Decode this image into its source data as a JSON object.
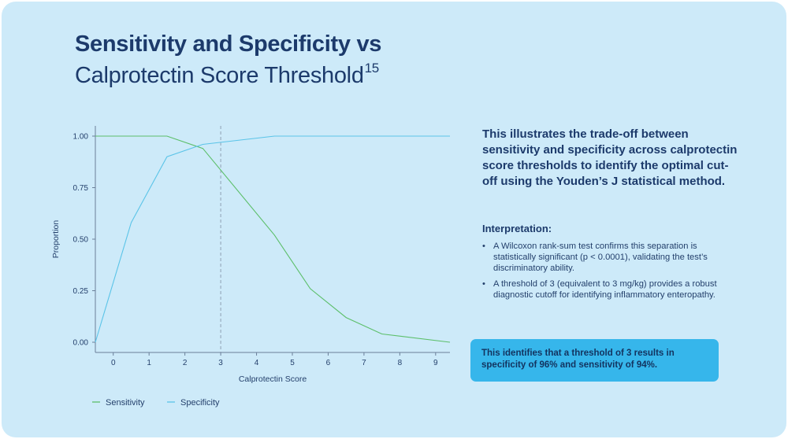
{
  "title": {
    "line1": "Sensitivity and Specificity vs",
    "line2": "Calprotectin Score Threshold",
    "superscript": "15"
  },
  "description": "This illustrates the trade-off between sensitivity and specificity across calprotectin score thresholds to identify the optimal cut-off using the Youden’s J statistical method.",
  "interpretation": {
    "heading": "Interpretation:",
    "bullets": [
      "A Wilcoxon rank-sum test confirms this separation is statistically significant (p < 0.0001), validating the test’s discriminatory ability.",
      "A threshold of 3 (equivalent to 3 mg/kg) provides a robust diagnostic cutoff for identifying inflammatory enteropathy."
    ]
  },
  "callout": "This identifies that a threshold of 3 results in specificity of 96% and sensitivity of 94%.",
  "colors": {
    "sensitivity": "#5cbf6a",
    "specificity": "#5bc4e8",
    "text": "#1c3a6b",
    "callout": "#36b6eb"
  },
  "chart_data": {
    "type": "line",
    "xlabel": "Calprotectin Score",
    "ylabel": "Proportion",
    "xlim": [
      -0.5,
      9.4
    ],
    "ylim": [
      0,
      1.05
    ],
    "xticks": [
      "0",
      "1",
      "2",
      "3",
      "4",
      "5",
      "6",
      "7",
      "8",
      "9"
    ],
    "yticks": [
      "0.00",
      "0.25",
      "0.50",
      "0.75",
      "1.00"
    ],
    "threshold": 3,
    "series": [
      {
        "name": "Sensitivity",
        "x": [
          -0.5,
          1.5,
          2.5,
          4.5,
          5.5,
          6.5,
          7.5,
          9.4
        ],
        "y": [
          1.0,
          1.0,
          0.94,
          0.52,
          0.26,
          0.12,
          0.04,
          0.0
        ]
      },
      {
        "name": "Specificity",
        "x": [
          -0.5,
          0.5,
          1.5,
          2.5,
          4.5,
          9.4
        ],
        "y": [
          0.0,
          0.58,
          0.9,
          0.96,
          1.0,
          1.0
        ]
      }
    ]
  }
}
